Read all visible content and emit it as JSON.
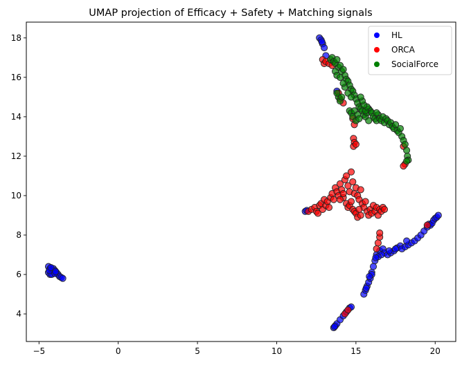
{
  "chart_data": {
    "type": "scatter",
    "title": "UMAP projection of Efficacy + Safety + Matching signals",
    "xlabel": "",
    "ylabel": "",
    "xlim": [
      -5.8,
      21.3
    ],
    "ylim": [
      2.6,
      18.8
    ],
    "xticks": [
      -5,
      0,
      5,
      10,
      15,
      20
    ],
    "yticks": [
      4,
      6,
      8,
      10,
      12,
      14,
      16,
      18
    ],
    "grid": false,
    "legend_position": "top-right",
    "series": [
      {
        "name": "HL",
        "color": "#0000ff",
        "points": [
          [
            -4.4,
            6.4
          ],
          [
            -4.3,
            6.3
          ],
          [
            -4.2,
            6.2
          ],
          [
            -4.4,
            6.1
          ],
          [
            -4.3,
            6.0
          ],
          [
            -4.1,
            6.3
          ],
          [
            -4.0,
            6.2
          ],
          [
            -4.2,
            6.0
          ],
          [
            -3.9,
            6.1
          ],
          [
            -3.8,
            6.0
          ],
          [
            -3.7,
            5.9
          ],
          [
            -3.6,
            5.85
          ],
          [
            -3.5,
            5.8
          ],
          [
            -4.35,
            6.2
          ],
          [
            -4.0,
            6.05
          ],
          [
            -4.25,
            6.35
          ],
          [
            -3.95,
            6.15
          ],
          [
            12.7,
            18.0
          ],
          [
            12.8,
            17.9
          ],
          [
            12.9,
            17.7
          ],
          [
            13.0,
            17.5
          ],
          [
            12.85,
            17.8
          ],
          [
            13.1,
            17.1
          ],
          [
            13.8,
            15.3
          ],
          [
            11.8,
            9.2
          ],
          [
            11.9,
            9.25
          ],
          [
            13.6,
            3.3
          ],
          [
            13.7,
            3.4
          ],
          [
            13.8,
            3.5
          ],
          [
            14.0,
            3.7
          ],
          [
            14.2,
            3.9
          ],
          [
            14.4,
            4.1
          ],
          [
            14.6,
            4.3
          ],
          [
            14.7,
            4.35
          ],
          [
            13.65,
            3.35
          ],
          [
            15.5,
            5.0
          ],
          [
            15.6,
            5.2
          ],
          [
            15.7,
            5.4
          ],
          [
            15.8,
            5.6
          ],
          [
            15.9,
            5.8
          ],
          [
            16.0,
            6.1
          ],
          [
            16.1,
            6.4
          ],
          [
            16.2,
            6.7
          ],
          [
            16.3,
            7.0
          ],
          [
            16.5,
            7.2
          ],
          [
            16.7,
            7.3
          ],
          [
            16.8,
            7.1
          ],
          [
            16.6,
            7.0
          ],
          [
            16.4,
            6.9
          ],
          [
            17.0,
            7.0
          ],
          [
            17.2,
            7.1
          ],
          [
            17.4,
            7.2
          ],
          [
            17.6,
            7.35
          ],
          [
            17.8,
            7.45
          ],
          [
            17.9,
            7.3
          ],
          [
            18.1,
            7.4
          ],
          [
            18.3,
            7.5
          ],
          [
            18.5,
            7.6
          ],
          [
            18.7,
            7.7
          ],
          [
            18.9,
            7.85
          ],
          [
            19.1,
            8.0
          ],
          [
            19.3,
            8.2
          ],
          [
            19.5,
            8.4
          ],
          [
            19.6,
            8.55
          ],
          [
            19.7,
            8.5
          ],
          [
            19.8,
            8.6
          ],
          [
            19.9,
            8.75
          ],
          [
            20.0,
            8.85
          ],
          [
            20.1,
            8.9
          ],
          [
            20.2,
            9.0
          ],
          [
            18.2,
            7.7
          ],
          [
            16.0,
            6.0
          ],
          [
            15.65,
            5.3
          ],
          [
            15.85,
            5.9
          ],
          [
            16.25,
            6.85
          ],
          [
            17.1,
            7.2
          ],
          [
            17.5,
            7.3
          ]
        ]
      },
      {
        "name": "ORCA",
        "color": "#ff0000",
        "points": [
          [
            12.9,
            16.9
          ],
          [
            13.0,
            16.7
          ],
          [
            13.1,
            16.8
          ],
          [
            13.3,
            16.7
          ],
          [
            13.5,
            16.6
          ],
          [
            13.9,
            15.2
          ],
          [
            14.0,
            14.9
          ],
          [
            14.2,
            14.7
          ],
          [
            14.8,
            13.9
          ],
          [
            14.9,
            13.6
          ],
          [
            14.85,
            12.9
          ],
          [
            14.9,
            12.7
          ],
          [
            14.85,
            12.5
          ],
          [
            15.0,
            12.6
          ],
          [
            18.0,
            12.5
          ],
          [
            18.1,
            11.6
          ],
          [
            18.0,
            11.5
          ],
          [
            12.0,
            9.2
          ],
          [
            12.2,
            9.3
          ],
          [
            12.4,
            9.4
          ],
          [
            12.5,
            9.2
          ],
          [
            12.6,
            9.1
          ],
          [
            12.7,
            9.5
          ],
          [
            12.8,
            9.6
          ],
          [
            12.9,
            9.3
          ],
          [
            13.0,
            9.8
          ],
          [
            13.1,
            9.5
          ],
          [
            13.2,
            9.7
          ],
          [
            13.3,
            9.4
          ],
          [
            13.4,
            9.9
          ],
          [
            13.5,
            10.1
          ],
          [
            13.6,
            9.8
          ],
          [
            13.7,
            10.4
          ],
          [
            13.8,
            10.2
          ],
          [
            13.9,
            10.0
          ],
          [
            14.0,
            10.6
          ],
          [
            14.1,
            10.3
          ],
          [
            14.2,
            9.9
          ],
          [
            14.3,
            10.8
          ],
          [
            14.4,
            11.0
          ],
          [
            14.5,
            10.5
          ],
          [
            14.6,
            10.2
          ],
          [
            14.7,
            11.2
          ],
          [
            14.8,
            10.7
          ],
          [
            14.9,
            10.1
          ],
          [
            15.0,
            10.4
          ],
          [
            15.1,
            10.0
          ],
          [
            15.2,
            9.8
          ],
          [
            15.3,
            10.3
          ],
          [
            15.4,
            9.6
          ],
          [
            15.5,
            9.4
          ],
          [
            15.6,
            9.7
          ],
          [
            15.7,
            9.2
          ],
          [
            15.8,
            9.0
          ],
          [
            15.9,
            9.3
          ],
          [
            16.0,
            9.1
          ],
          [
            16.1,
            9.5
          ],
          [
            16.2,
            9.2
          ],
          [
            16.3,
            9.4
          ],
          [
            16.4,
            9.0
          ],
          [
            16.5,
            9.3
          ],
          [
            16.6,
            9.2
          ],
          [
            16.7,
            9.4
          ],
          [
            16.8,
            9.3
          ],
          [
            14.4,
            9.6
          ],
          [
            14.5,
            9.4
          ],
          [
            14.6,
            9.5
          ],
          [
            14.7,
            9.7
          ],
          [
            14.8,
            9.3
          ],
          [
            14.9,
            9.2
          ],
          [
            15.0,
            9.1
          ],
          [
            15.1,
            8.9
          ],
          [
            15.2,
            9.3
          ],
          [
            15.3,
            9.0
          ],
          [
            14.2,
            10.1
          ],
          [
            14.0,
            9.8
          ],
          [
            16.3,
            7.3
          ],
          [
            16.4,
            7.6
          ],
          [
            16.5,
            7.9
          ],
          [
            16.5,
            8.1
          ],
          [
            19.5,
            8.5
          ],
          [
            14.3,
            4.0
          ],
          [
            14.5,
            4.2
          ]
        ]
      },
      {
        "name": "SocialForce",
        "color": "#008000",
        "points": [
          [
            13.4,
            16.9
          ],
          [
            13.5,
            17.0
          ],
          [
            13.6,
            16.8
          ],
          [
            13.7,
            16.7
          ],
          [
            13.8,
            16.9
          ],
          [
            13.9,
            16.5
          ],
          [
            14.0,
            16.6
          ],
          [
            14.1,
            16.3
          ],
          [
            14.2,
            16.4
          ],
          [
            14.3,
            16.1
          ],
          [
            14.4,
            15.9
          ],
          [
            14.5,
            15.8
          ],
          [
            14.6,
            15.6
          ],
          [
            14.7,
            15.4
          ],
          [
            14.8,
            15.3
          ],
          [
            14.9,
            15.1
          ],
          [
            15.0,
            14.9
          ],
          [
            15.1,
            14.7
          ],
          [
            15.2,
            14.5
          ],
          [
            15.3,
            14.4
          ],
          [
            15.4,
            14.3
          ],
          [
            15.5,
            14.1
          ],
          [
            15.6,
            14.0
          ],
          [
            15.7,
            14.2
          ],
          [
            15.8,
            14.4
          ],
          [
            15.9,
            14.3
          ],
          [
            16.0,
            14.2
          ],
          [
            16.1,
            14.0
          ],
          [
            16.2,
            13.9
          ],
          [
            16.3,
            13.8
          ],
          [
            16.4,
            14.1
          ],
          [
            16.5,
            13.9
          ],
          [
            16.6,
            13.8
          ],
          [
            16.7,
            14.0
          ],
          [
            16.8,
            13.7
          ],
          [
            16.9,
            13.9
          ],
          [
            17.0,
            13.8
          ],
          [
            17.1,
            13.6
          ],
          [
            17.2,
            13.7
          ],
          [
            17.3,
            13.5
          ],
          [
            17.4,
            13.4
          ],
          [
            17.5,
            13.6
          ],
          [
            17.6,
            13.3
          ],
          [
            17.7,
            13.2
          ],
          [
            17.8,
            13.4
          ],
          [
            17.9,
            13.0
          ],
          [
            18.0,
            12.8
          ],
          [
            18.1,
            12.6
          ],
          [
            18.2,
            12.3
          ],
          [
            18.25,
            12.0
          ],
          [
            18.3,
            11.8
          ],
          [
            18.2,
            11.75
          ],
          [
            13.9,
            15.0
          ],
          [
            14.0,
            14.8
          ],
          [
            13.8,
            15.2
          ],
          [
            14.1,
            15.0
          ],
          [
            14.6,
            14.3
          ],
          [
            14.7,
            14.2
          ],
          [
            14.8,
            14.0
          ],
          [
            14.9,
            14.3
          ],
          [
            15.0,
            13.8
          ],
          [
            15.1,
            14.1
          ],
          [
            15.2,
            13.9
          ],
          [
            15.6,
            14.3
          ],
          [
            15.7,
            14.5
          ],
          [
            15.5,
            14.6
          ],
          [
            14.3,
            15.5
          ],
          [
            14.5,
            15.2
          ],
          [
            14.7,
            15.0
          ],
          [
            13.7,
            16.3
          ],
          [
            13.8,
            16.1
          ],
          [
            14.0,
            16.0
          ],
          [
            14.2,
            15.7
          ],
          [
            15.8,
            13.8
          ],
          [
            16.3,
            14.2
          ],
          [
            15.4,
            14.8
          ],
          [
            15.3,
            15.0
          ]
        ]
      }
    ]
  }
}
